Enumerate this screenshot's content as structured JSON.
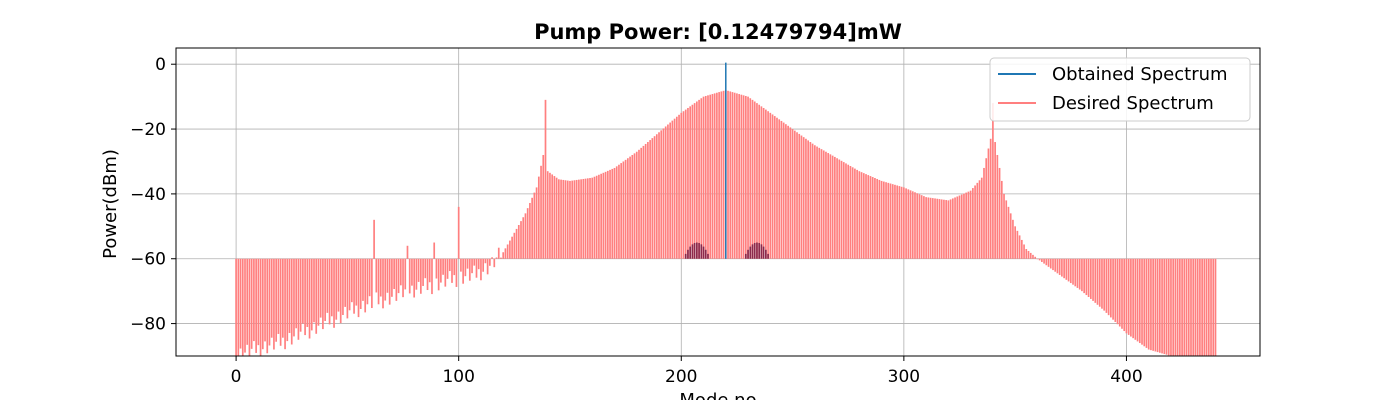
{
  "chart_data": {
    "type": "bar",
    "title": "Pump Power: [0.12479794]mW",
    "xlabel": "Mode no",
    "ylabel": "Power(dBm)",
    "xlim": [
      -27,
      460
    ],
    "ylim": [
      -90,
      5
    ],
    "xticks": [
      0,
      100,
      200,
      300,
      400
    ],
    "yticks": [
      0,
      -20,
      -40,
      -60,
      -80
    ],
    "ytick_labels": [
      "0",
      "−20",
      "−40",
      "−60",
      "−80"
    ],
    "grid": true,
    "legend": {
      "placement": "top-right",
      "entries": [
        "Obtained Spectrum",
        "Desired Spectrum"
      ]
    },
    "colors": {
      "obtained": "#1f77b4",
      "desired": "#ff7f7f",
      "overlap": "#8b2a4c"
    },
    "series": [
      {
        "name": "Desired Spectrum",
        "mode_range": [
          0,
          440
        ],
        "baseline_db": -60,
        "spectrum_profile_dbm": [
          [
            0,
            -90
          ],
          [
            10,
            -88
          ],
          [
            20,
            -86
          ],
          [
            30,
            -83
          ],
          [
            40,
            -80
          ],
          [
            50,
            -77
          ],
          [
            60,
            -74
          ],
          [
            70,
            -72
          ],
          [
            80,
            -70
          ],
          [
            90,
            -68
          ],
          [
            100,
            -66
          ],
          [
            108,
            -65
          ],
          [
            115,
            -62
          ],
          [
            120,
            -58
          ],
          [
            125,
            -52
          ],
          [
            130,
            -46
          ],
          [
            135,
            -38
          ],
          [
            138,
            -28
          ],
          [
            140,
            -33
          ],
          [
            145,
            -35.5
          ],
          [
            150,
            -36
          ],
          [
            160,
            -35
          ],
          [
            170,
            -32
          ],
          [
            180,
            -27
          ],
          [
            190,
            -21
          ],
          [
            200,
            -15
          ],
          [
            210,
            -10
          ],
          [
            220,
            -8
          ],
          [
            230,
            -10
          ],
          [
            240,
            -15
          ],
          [
            250,
            -20
          ],
          [
            260,
            -25
          ],
          [
            270,
            -29
          ],
          [
            280,
            -33
          ],
          [
            290,
            -36
          ],
          [
            300,
            -38
          ],
          [
            310,
            -41
          ],
          [
            320,
            -42
          ],
          [
            330,
            -39
          ],
          [
            335,
            -35
          ],
          [
            340,
            -20
          ],
          [
            342,
            -28
          ],
          [
            345,
            -40
          ],
          [
            350,
            -50
          ],
          [
            355,
            -57
          ],
          [
            360,
            -60
          ],
          [
            370,
            -65
          ],
          [
            380,
            -70
          ],
          [
            390,
            -76
          ],
          [
            400,
            -83
          ],
          [
            410,
            -88
          ],
          [
            420,
            -90
          ],
          [
            440,
            -90
          ]
        ],
        "spikes": [
          {
            "mode": 62,
            "value": -48
          },
          {
            "mode": 77,
            "value": -56
          },
          {
            "mode": 89,
            "value": -55
          },
          {
            "mode": 100,
            "value": -44
          },
          {
            "mode": 139,
            "value": -11
          },
          {
            "mode": 340,
            "value": -12
          }
        ]
      },
      {
        "name": "Obtained Spectrum",
        "peaks": [
          {
            "mode": 220,
            "value": 0.5
          }
        ],
        "sidebands": [
          {
            "center": 207,
            "peak_dbm": -55
          },
          {
            "center": 234,
            "peak_dbm": -55
          }
        ]
      }
    ]
  }
}
